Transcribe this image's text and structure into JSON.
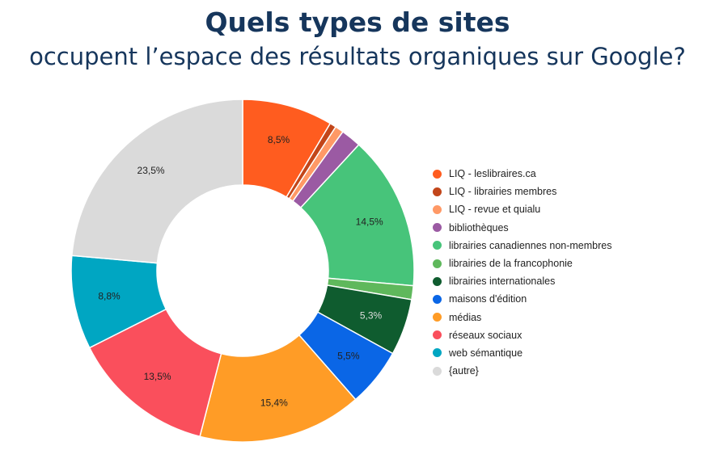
{
  "header": {
    "title": "Quels types de sites",
    "subtitle": "occupent l’espace des résultats organiques sur Google?"
  },
  "chart_data": {
    "type": "pie",
    "donut": true,
    "legend_position": "right",
    "start_angle_deg": 0,
    "direction": "clockwise",
    "slices": [
      {
        "name": "LIQ - leslibraires.ca",
        "value": 8.5,
        "label": "8,5%",
        "color": "#ff5c1f",
        "label_color": "#222222"
      },
      {
        "name": "LIQ - librairies membres",
        "value": 0.6,
        "label": "",
        "color": "#c2461a"
      },
      {
        "name": "LIQ - revue et quialu",
        "value": 0.8,
        "label": "",
        "color": "#ff9966"
      },
      {
        "name": "bibliothèques",
        "value": 1.9,
        "label": "",
        "color": "#9b5aa3"
      },
      {
        "name": "librairies canadiennes non-membres",
        "value": 14.5,
        "label": "14,5%",
        "color": "#47c47a",
        "label_color": "#222222"
      },
      {
        "name": "librairies de la francophonie",
        "value": 1.3,
        "label": "",
        "color": "#5fb85c"
      },
      {
        "name": "librairies internationales",
        "value": 5.3,
        "label": "5,3%",
        "color": "#0f5c2f",
        "label_color": "#dddddd"
      },
      {
        "name": "maisons d'édition",
        "value": 5.5,
        "label": "5,5%",
        "color": "#0a66e6",
        "label_color": "#222222"
      },
      {
        "name": "médias",
        "value": 15.4,
        "label": "15,4%",
        "color": "#ff9c26",
        "label_color": "#222222"
      },
      {
        "name": "réseaux sociaux",
        "value": 13.5,
        "label": "13,5%",
        "color": "#fa4f5c",
        "label_color": "#222222"
      },
      {
        "name": "web sémantique",
        "value": 8.8,
        "label": "8,8%",
        "color": "#00a6c2",
        "label_color": "#222222"
      },
      {
        "name": "{autre}",
        "value": 23.5,
        "label": "23,5%",
        "color": "#dadada",
        "label_color": "#222222"
      }
    ]
  }
}
